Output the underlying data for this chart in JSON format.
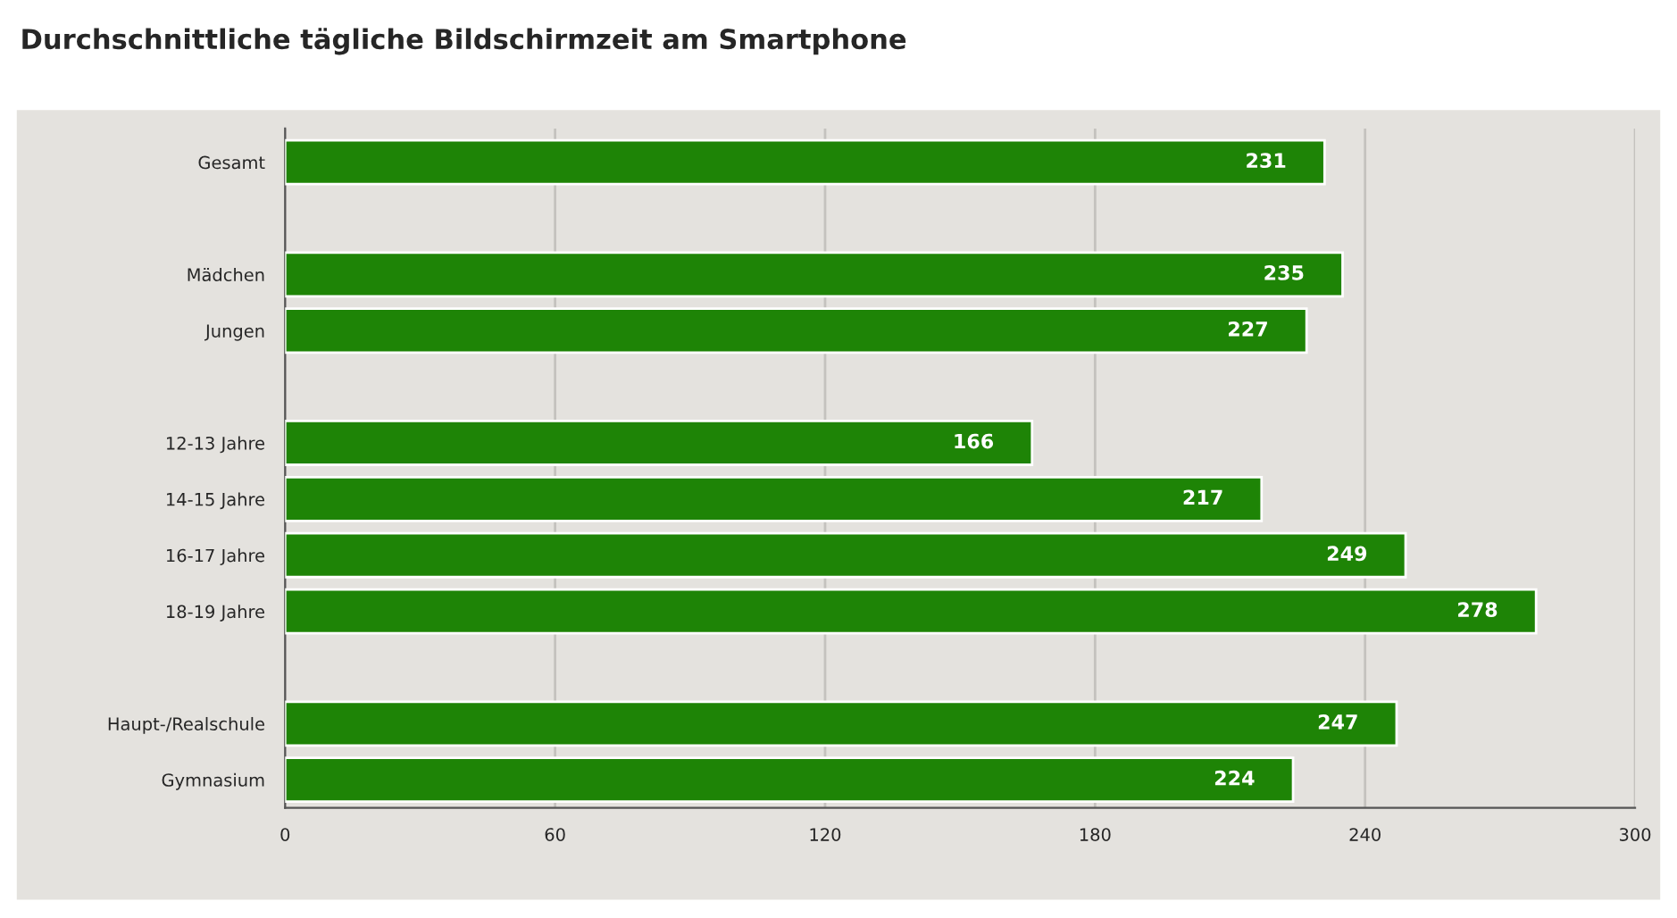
{
  "chart_data": {
    "type": "bar",
    "orientation": "horizontal",
    "title": "Durchschnittliche tägliche Bildschirmzeit am Smartphone",
    "categories": [
      "Gesamt",
      null,
      "Mädchen",
      "Jungen",
      null,
      "12-13 Jahre",
      "14-15 Jahre",
      "16-17 Jahre",
      "18-19 Jahre",
      null,
      "Haupt-/Realschule",
      "Gymnasium"
    ],
    "values": [
      231,
      null,
      235,
      227,
      null,
      166,
      217,
      249,
      278,
      null,
      247,
      224
    ],
    "color": "#1e8406",
    "xlim": [
      0,
      300
    ],
    "xticks": [
      0,
      60,
      120,
      180,
      240,
      300
    ],
    "grid": "x",
    "data_labels": true
  }
}
